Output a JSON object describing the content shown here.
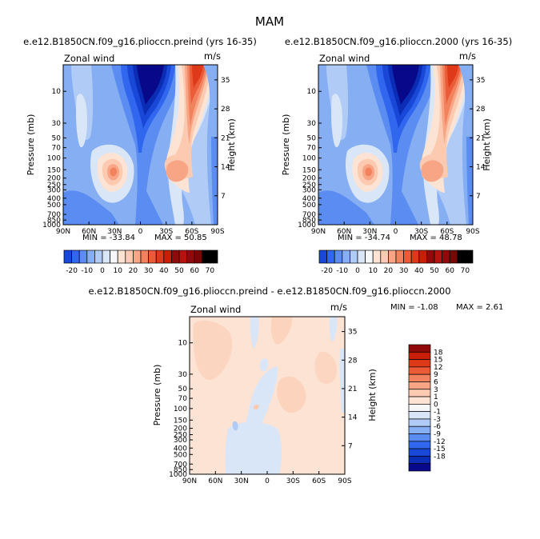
{
  "title": "MAM",
  "colors": {
    "neg": [
      "#08088a",
      "#0b2cb4",
      "#1948d8",
      "#3167ee",
      "#5a8cf2",
      "#86aef3",
      "#b0cbf5",
      "#d9e6f8"
    ],
    "pos": [
      "#fde3d3",
      "#fbcab0",
      "#f8a586",
      "#f2825e",
      "#ec5b38",
      "#de3a1a",
      "#c81e08",
      "#8f0b0b"
    ],
    "zero": "#f5f7f8"
  },
  "chart_data": [
    {
      "type": "heatmap",
      "title": "e.e12.B1850CN.f09_g16.plioccn.preind (yrs 16-35)",
      "left_label": "Zonal wind",
      "units": "m/s",
      "ylabel": "Pressure (mb)",
      "ylabel_right": "Height (km)",
      "x_ticks": [
        "90N",
        "60N",
        "30N",
        "0",
        "30S",
        "60S",
        "90S"
      ],
      "xlim": [
        90,
        -90
      ],
      "y_ticks": [
        "10",
        "30",
        "50",
        "70",
        "100",
        "150",
        "200",
        "250",
        "300",
        "400",
        "500",
        "700",
        "850",
        "1000"
      ],
      "y_tick_values": [
        10,
        30,
        50,
        70,
        100,
        150,
        200,
        250,
        300,
        400,
        500,
        700,
        850,
        1000
      ],
      "ylim": [
        1000,
        4
      ],
      "height_ticks": [
        "35",
        "28",
        "21",
        "14",
        "7"
      ],
      "height_values": [
        35,
        28,
        21,
        14,
        7
      ],
      "min_label": "MIN = -33.84",
      "max_label": "MAX = 50.85",
      "min": -33.84,
      "max": 50.85,
      "colorbar_levels": [
        -25,
        -20,
        -15,
        -10,
        -5,
        0,
        5,
        10,
        15,
        20,
        25,
        30,
        35,
        40,
        45,
        50,
        55,
        60,
        65,
        70
      ],
      "colorbar_labels": [
        "-20",
        "-10",
        "0",
        "10",
        "20",
        "30",
        "40",
        "50",
        "60",
        "70"
      ]
    },
    {
      "type": "heatmap",
      "title": "e.e12.B1850CN.f09_g16.plioccn.2000 (yrs 16-35)",
      "left_label": "Zonal wind",
      "units": "m/s",
      "ylabel": "Pressure (mb)",
      "ylabel_right": "Height (km)",
      "x_ticks": [
        "90N",
        "60N",
        "30N",
        "0",
        "30S",
        "60S",
        "90S"
      ],
      "xlim": [
        90,
        -90
      ],
      "y_ticks": [
        "10",
        "30",
        "50",
        "70",
        "100",
        "150",
        "200",
        "250",
        "300",
        "400",
        "500",
        "700",
        "850",
        "1000"
      ],
      "y_tick_values": [
        10,
        30,
        50,
        70,
        100,
        150,
        200,
        250,
        300,
        400,
        500,
        700,
        850,
        1000
      ],
      "ylim": [
        1000,
        4
      ],
      "height_ticks": [
        "35",
        "28",
        "21",
        "14",
        "7"
      ],
      "height_values": [
        35,
        28,
        21,
        14,
        7
      ],
      "min_label": "MIN = -34.74",
      "max_label": "MAX = 48.78",
      "min": -34.74,
      "max": 48.78,
      "colorbar_levels": [
        -25,
        -20,
        -15,
        -10,
        -5,
        0,
        5,
        10,
        15,
        20,
        25,
        30,
        35,
        40,
        45,
        50,
        55,
        60,
        65,
        70
      ],
      "colorbar_labels": [
        "-20",
        "-10",
        "0",
        "10",
        "20",
        "30",
        "40",
        "50",
        "60",
        "70"
      ]
    },
    {
      "type": "heatmap",
      "title": "e.e12.B1850CN.f09_g16.plioccn.preind - e.e12.B1850CN.f09_g16.plioccn.2000",
      "left_label": "Zonal wind",
      "units": "m/s",
      "ylabel": "Pressure (mb)",
      "ylabel_right": "Height (km)",
      "x_ticks": [
        "90N",
        "60N",
        "30N",
        "0",
        "30S",
        "60S",
        "90S"
      ],
      "xlim": [
        90,
        -90
      ],
      "y_ticks": [
        "10",
        "30",
        "50",
        "70",
        "100",
        "150",
        "200",
        "250",
        "300",
        "400",
        "500",
        "700",
        "850",
        "1000"
      ],
      "y_tick_values": [
        10,
        30,
        50,
        70,
        100,
        150,
        200,
        250,
        300,
        400,
        500,
        700,
        850,
        1000
      ],
      "ylim": [
        1000,
        4
      ],
      "height_ticks": [
        "35",
        "28",
        "21",
        "14",
        "7"
      ],
      "height_values": [
        35,
        28,
        21,
        14,
        7
      ],
      "min_label": "MIN = -1.08",
      "max_label": "MAX = 2.61",
      "min": -1.08,
      "max": 2.61,
      "colorbar_levels": [
        -18,
        -15,
        -12,
        -9,
        -6,
        -3,
        -1,
        0,
        1,
        3,
        6,
        9,
        12,
        15,
        18
      ],
      "colorbar_labels": [
        "18",
        "15",
        "12",
        "9",
        "6",
        "3",
        "1",
        "0",
        "-1",
        "-3",
        "-6",
        "-9",
        "-12",
        "-15",
        "-18"
      ]
    }
  ]
}
